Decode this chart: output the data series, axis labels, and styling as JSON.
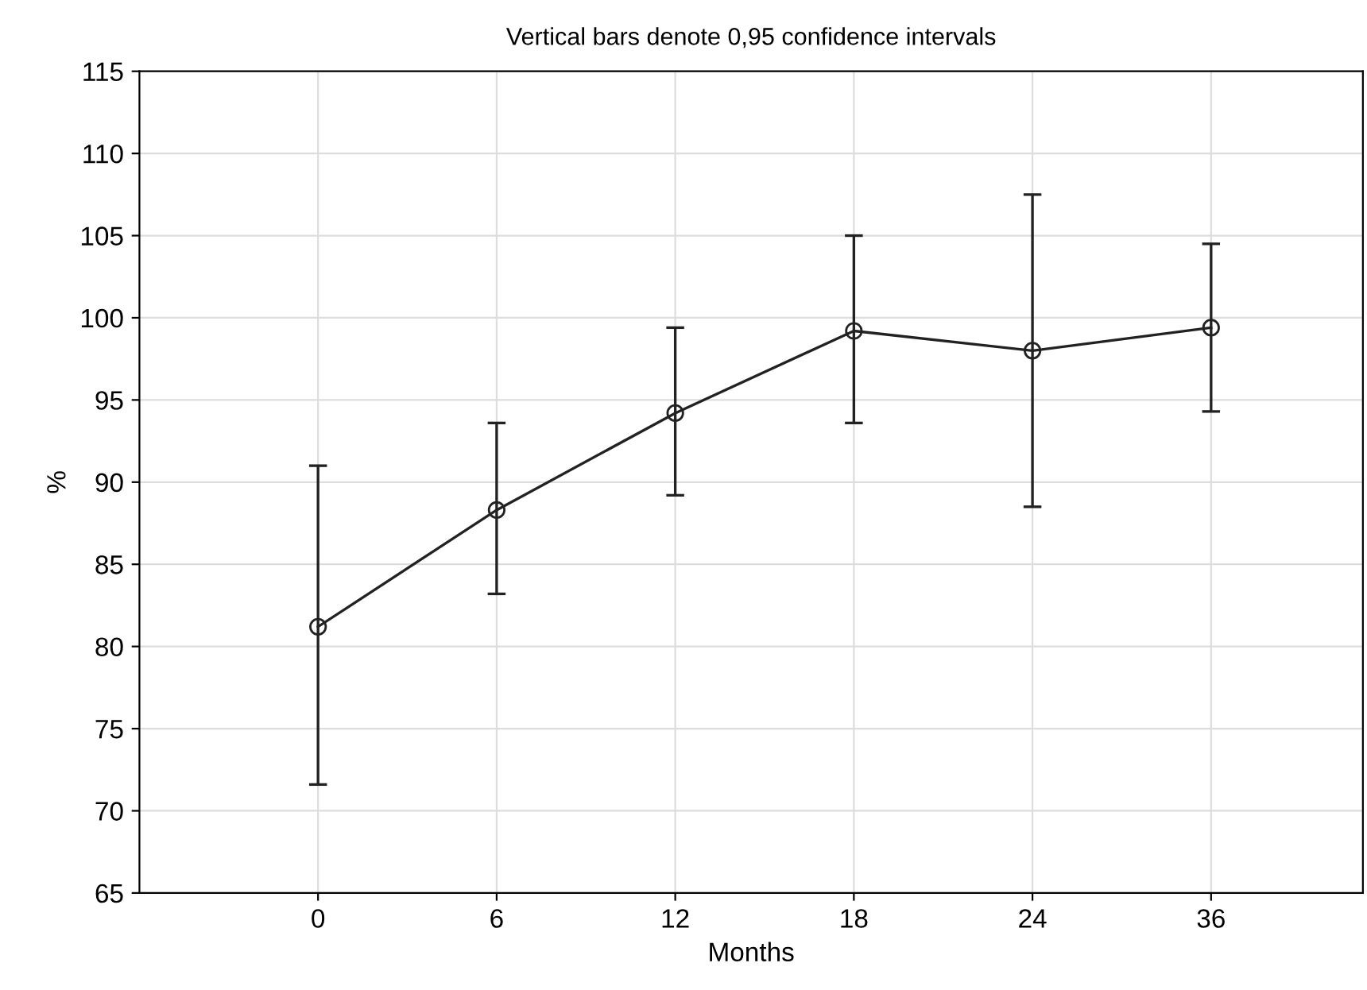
{
  "chart_data": {
    "type": "line",
    "title": "Vertical bars denote 0,95 confidence intervals",
    "xlabel": "Months",
    "ylabel": "%",
    "categories": [
      "0",
      "6",
      "12",
      "18",
      "24",
      "36"
    ],
    "series": [
      {
        "color": "#222222",
        "values": [
          81.2,
          88.3,
          94.2,
          99.2,
          98.0,
          99.4
        ],
        "errors": [
          [
            71.6,
            91.0
          ],
          [
            83.2,
            93.6
          ],
          [
            89.2,
            99.4
          ],
          [
            93.6,
            105.0
          ],
          [
            88.5,
            107.5
          ],
          [
            94.3,
            104.5
          ]
        ]
      }
    ],
    "ylim": [
      65,
      115
    ],
    "yticks": [
      65,
      70,
      75,
      80,
      85,
      90,
      95,
      100,
      105,
      110,
      115
    ],
    "grid": true,
    "marker": "circle",
    "line_style": "solid"
  }
}
